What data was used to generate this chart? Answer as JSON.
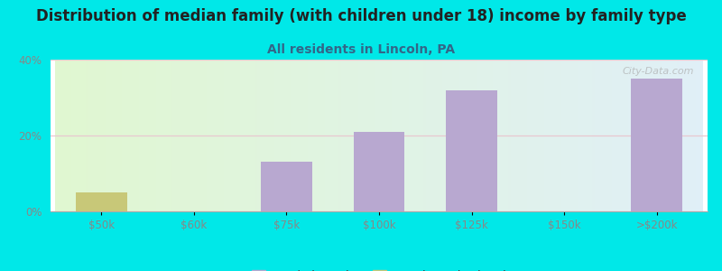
{
  "title": "Distribution of median family (with children under 18) income by family type",
  "subtitle": "All residents in Lincoln, PA",
  "categories": [
    "$50k",
    "$60k",
    "$75k",
    "$100k",
    "$125k",
    "$150k",
    ">$200k"
  ],
  "married_couple": [
    0,
    0,
    13,
    21,
    32,
    0,
    35
  ],
  "female_no_husband": [
    5,
    0,
    0,
    0,
    0,
    0,
    0
  ],
  "married_color": "#b8a8d0",
  "female_color": "#c8c878",
  "background_outer": "#00e8e8",
  "title_fontsize": 12,
  "subtitle_fontsize": 10,
  "title_color": "#222222",
  "subtitle_color": "#336688",
  "ylim": [
    0,
    40
  ],
  "yticks": [
    0,
    20,
    40
  ],
  "tick_color": "#888888",
  "watermark": "City-Data.com",
  "grid_color": "#e8c8d0",
  "legend_marker_size": 10
}
